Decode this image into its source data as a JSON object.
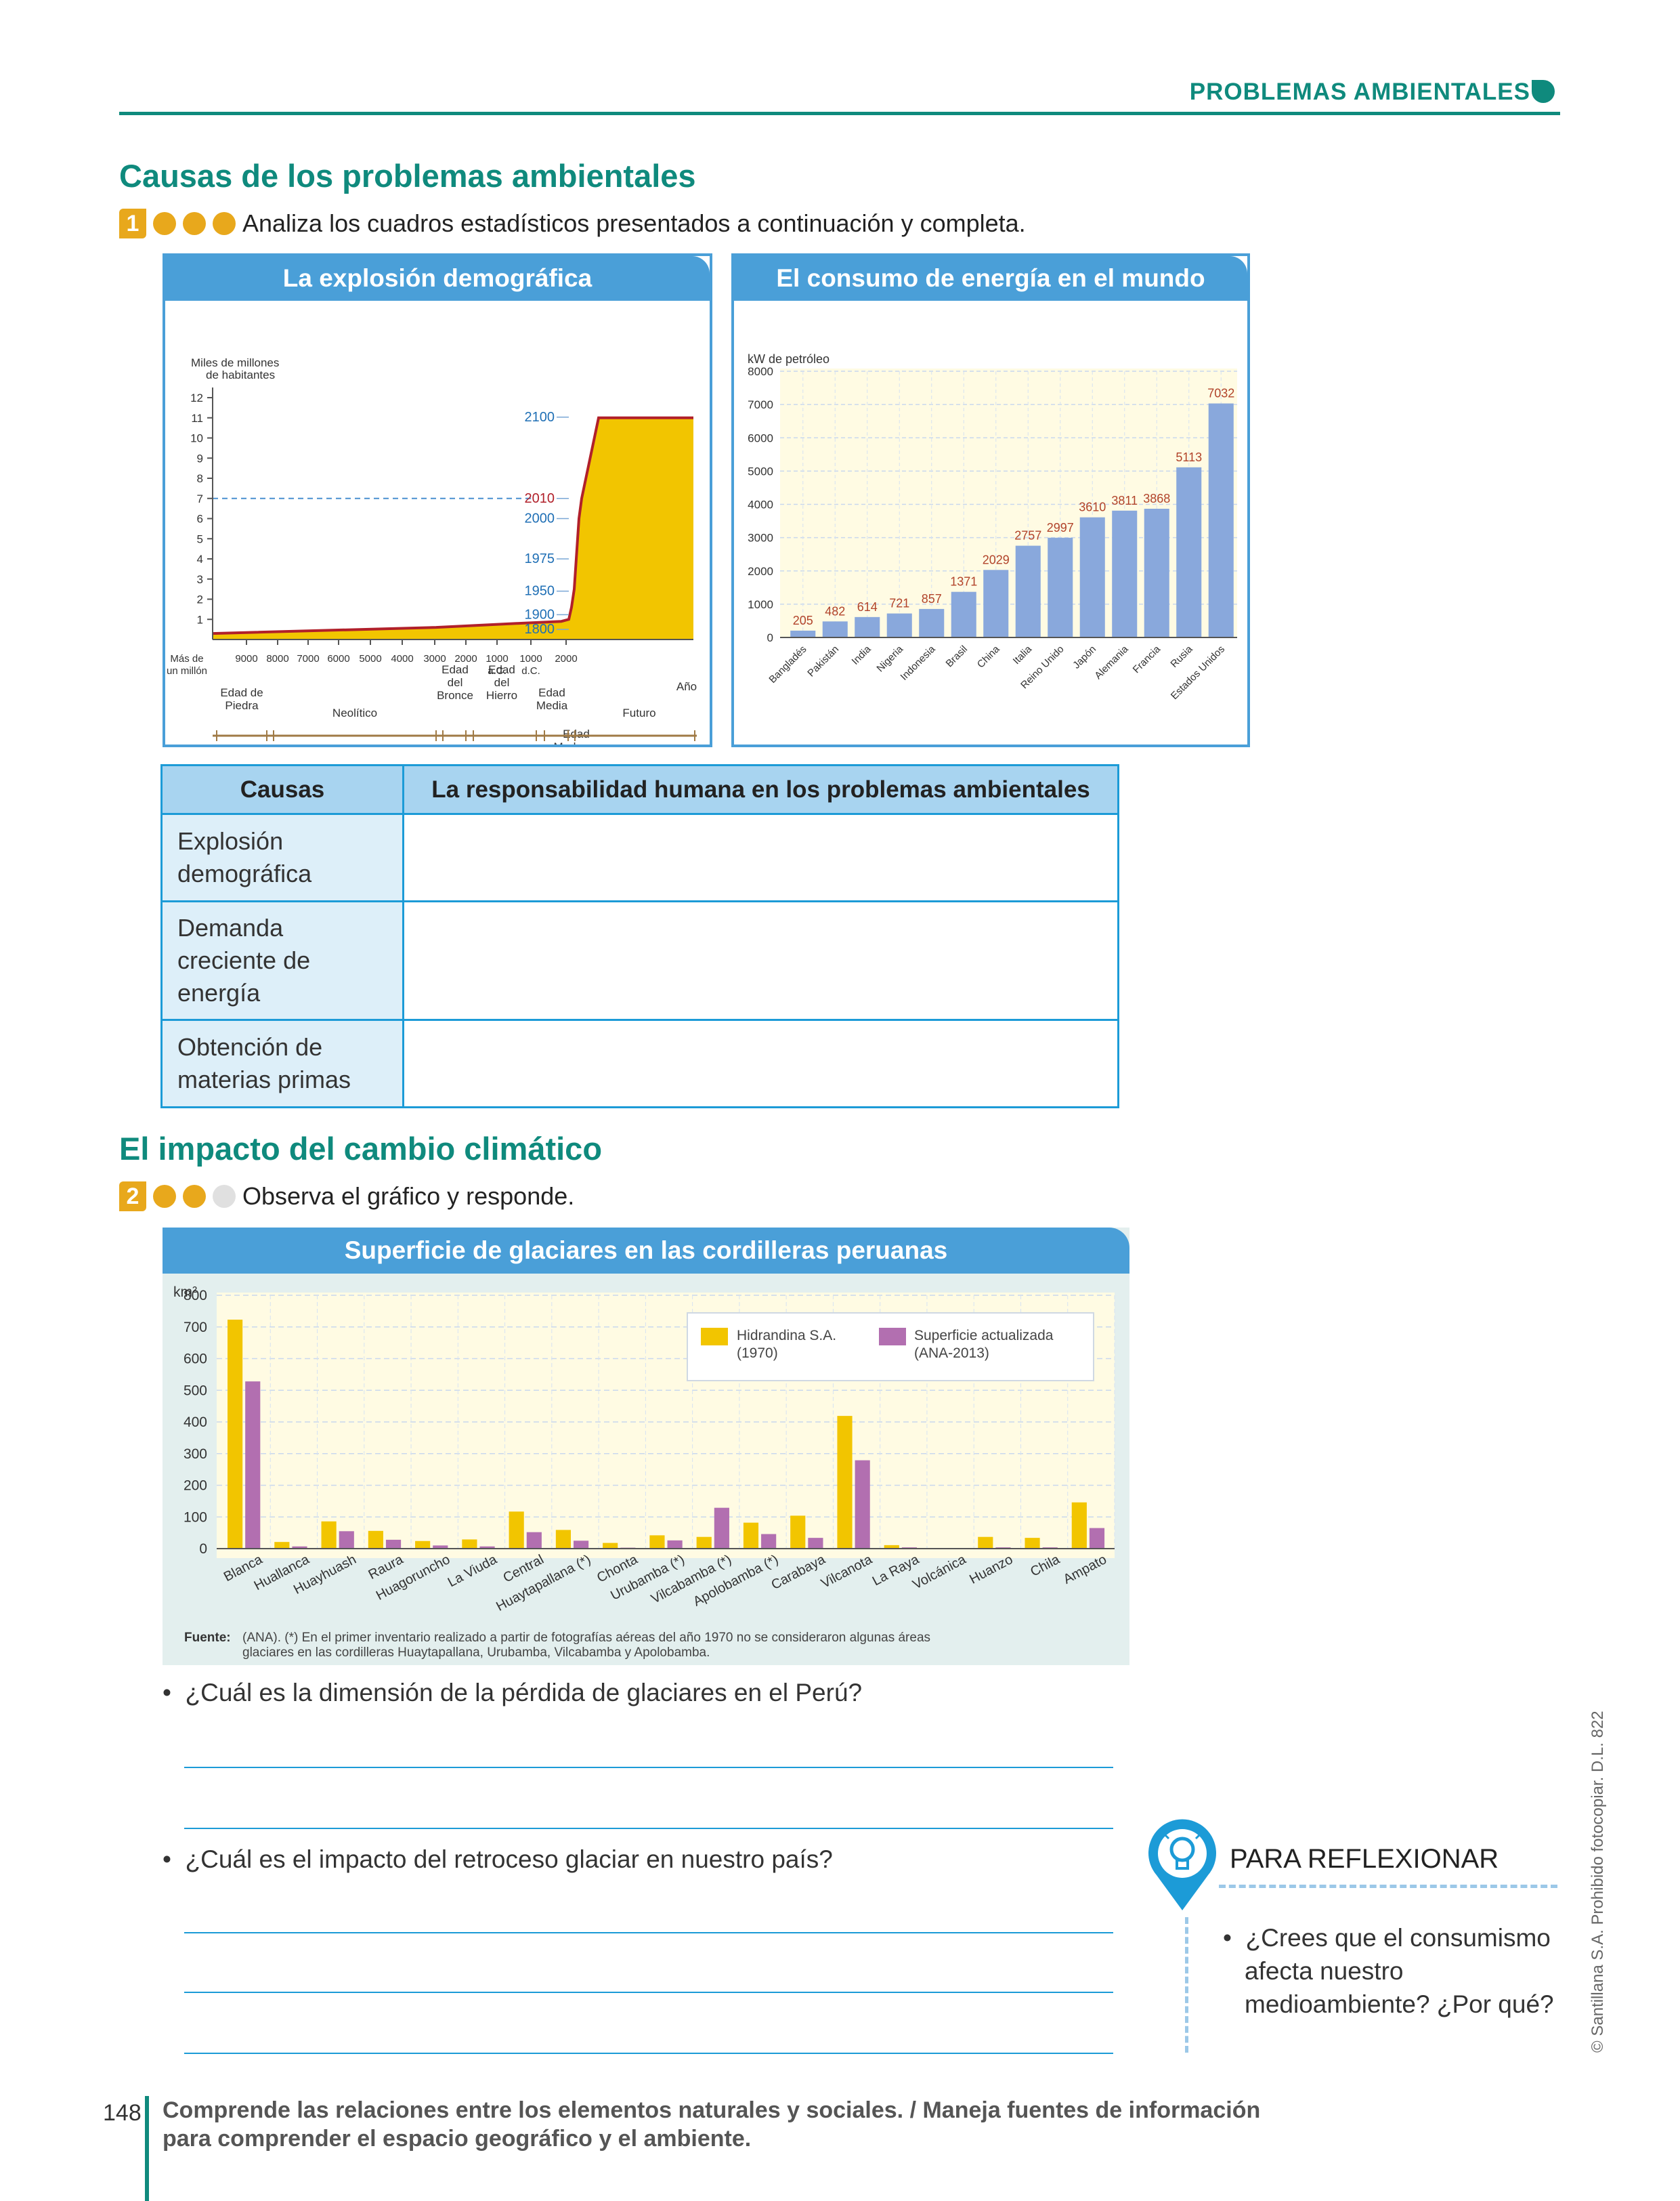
{
  "header": {
    "title": "PROBLEMAS AMBIENTALES"
  },
  "section1": {
    "title": "Causas de los problemas ambientales",
    "activity_number": "1",
    "instruction": "Analiza los cuadros estadísticos presentados a continuación y completa."
  },
  "chart_demo": {
    "title": "La explosión demográfica",
    "ylabel_line1": "Miles de millones",
    "ylabel_line2": "de habitantes",
    "xlabel": "Año",
    "x_ticks": [
      "Más de\nun millón",
      "9000",
      "8000",
      "7000",
      "6000",
      "5000",
      "4000",
      "3000",
      "2000",
      "1000\na.C.",
      "1000\nd.C.",
      "2000"
    ],
    "year_labels": [
      "2100",
      "2010",
      "2000",
      "1975",
      "1950",
      "1900",
      "1800"
    ],
    "eras": [
      {
        "label": "Edad de\nPiedra"
      },
      {
        "label": "Neolítico"
      },
      {
        "label": "Edad\ndel\nBronce"
      },
      {
        "label": "Edad\ndel\nHierro"
      },
      {
        "label": "Edad\nMedia"
      },
      {
        "label": "Futuro"
      },
      {
        "label": "Edad\nModerna"
      }
    ]
  },
  "chart_energy": {
    "title": "El consumo de energía en el mundo",
    "ylabel": "kW de petróleo"
  },
  "chart_data": [
    {
      "type": "area",
      "title": "La explosión demográfica",
      "ylabel": "Miles de millones de habitantes",
      "xlabel": "Año",
      "ylim": [
        0,
        12
      ],
      "y_ticks": [
        1,
        2,
        3,
        4,
        5,
        6,
        7,
        8,
        9,
        10,
        11,
        12
      ],
      "points": [
        {
          "year": "1800",
          "value": 1
        },
        {
          "year": "1900",
          "value": 1.6
        },
        {
          "year": "1950",
          "value": 2.5
        },
        {
          "year": "1975",
          "value": 4
        },
        {
          "year": "2000",
          "value": 6
        },
        {
          "year": "2010",
          "value": 7
        },
        {
          "year": "2100",
          "value": 11
        }
      ]
    },
    {
      "type": "bar",
      "title": "El consumo de energía en el mundo",
      "ylabel": "kW de petróleo",
      "ylim": [
        0,
        8000
      ],
      "y_ticks": [
        0,
        1000,
        2000,
        3000,
        4000,
        5000,
        6000,
        7000,
        8000
      ],
      "categories": [
        "Bangladés",
        "Pakistán",
        "India",
        "Nigeria",
        "Indonesia",
        "Brasil",
        "China",
        "Italia",
        "Reino Unido",
        "Japón",
        "Alemania",
        "Francia",
        "Rusia",
        "Estados Unidos"
      ],
      "values": [
        205,
        482,
        614,
        721,
        857,
        1371,
        2029,
        2757,
        2997,
        3610,
        3811,
        3868,
        5113,
        7032
      ]
    },
    {
      "type": "bar",
      "title": "Superficie de glaciares en las cordilleras peruanas",
      "ylabel": "km²",
      "ylim": [
        0,
        800
      ],
      "y_ticks": [
        0,
        100,
        200,
        300,
        400,
        500,
        600,
        700,
        800
      ],
      "categories": [
        "Blanca",
        "Huallanca",
        "Huayhuash",
        "Raura",
        "Huagoruncho",
        "La Viuda",
        "Central",
        "Huaytapallana (*)",
        "Chonta",
        "Urubamba (*)",
        "Vilcabamba (*)",
        "Apolobamba (*)",
        "Carabaya",
        "Vilcanota",
        "La Raya",
        "Volcánica",
        "Huanzo",
        "Chila",
        "Ampato"
      ],
      "series": [
        {
          "name": "Hidrandina S.A. (1970)",
          "color": "#f2c500",
          "values": [
            723,
            21,
            86,
            56,
            24,
            29,
            117,
            59,
            18,
            42,
            37,
            82,
            104,
            419,
            11,
            0,
            37,
            34,
            146
          ]
        },
        {
          "name": "Superficie actualizada (ANA-2013)",
          "color": "#b26fb0",
          "values": [
            528,
            7,
            55,
            28,
            10,
            7,
            52,
            25,
            3,
            26,
            129,
            46,
            34,
            279,
            4,
            1,
            4,
            4,
            65
          ]
        }
      ]
    }
  ],
  "table": {
    "headers": [
      "Causas",
      "La responsabilidad humana en los problemas ambientales"
    ],
    "rows": [
      {
        "cause": "Explosión demográfica",
        "answer": ""
      },
      {
        "cause": "Demanda creciente de energía",
        "answer": ""
      },
      {
        "cause": "Obtención de materias primas",
        "answer": ""
      }
    ]
  },
  "section2": {
    "title": "El impacto del cambio climático",
    "activity_number": "2",
    "instruction": "Observa el gráfico y responde."
  },
  "chart_glacier": {
    "title": "Superficie de glaciares en las cordilleras peruanas",
    "ylabel": "km²",
    "legend1_line1": "Hidrandina S.A.",
    "legend1_line2": "(1970)",
    "legend2_line1": "Superficie actualizada",
    "legend2_line2": "(ANA-2013)",
    "source_label": "Fuente:",
    "source_line1": "(ANA). (*) En el primer inventario realizado a partir de fotografías aéreas del año 1970 no se consideraron algunas áreas",
    "source_line2": "glaciares en las cordilleras Huaytapallana, Urubamba, Vilcabamba y Apolobamba."
  },
  "questions": [
    {
      "text": "¿Cuál es la dimensión de la pérdida de glaciares en el Perú?"
    },
    {
      "text": "¿Cuál es el impacto del retroceso glaciar en nuestro país?"
    }
  ],
  "reflect": {
    "title": "PARA REFLEXIONAR",
    "q_line1": "¿Crees que el consumismo",
    "q_line2": "afecta nuestro",
    "q_line3": "medioambiente? ¿Por qué?"
  },
  "side_note": "© Santillana S.A. Prohibido fotocopiar. D.L. 822",
  "footer": {
    "page_number": "148",
    "line1": "Comprende las relaciones entre los elementos naturales y sociales. / Maneja fuentes de información",
    "line2": "para comprender el espacio geográfico y el ambiente."
  },
  "colors": {
    "teal": "#0f8a7d",
    "blue": "#4a9fd8",
    "orange": "#e8a81c",
    "red_value": "#b1432a",
    "pop_fill": "#f2c500",
    "energy_bar": "#89a8dc"
  }
}
